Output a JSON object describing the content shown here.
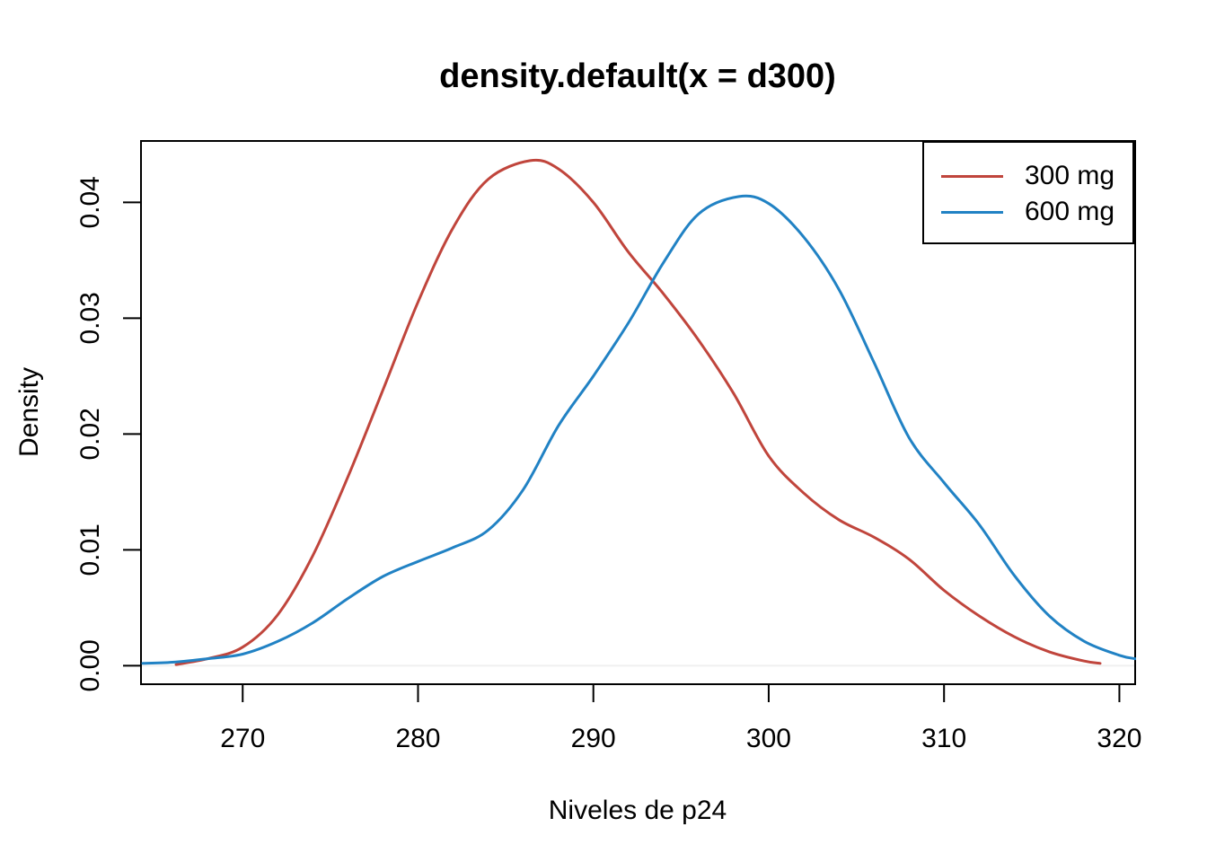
{
  "chart_data": {
    "type": "line",
    "title": "density.default(x = d300)",
    "xlabel": "Niveles de p24",
    "ylabel": "Density",
    "xlim": [
      264.2,
      320.9
    ],
    "ylim": [
      -0.0016,
      0.0453
    ],
    "x_ticks": [
      {
        "value": 270,
        "label": "270"
      },
      {
        "value": 280,
        "label": "280"
      },
      {
        "value": 290,
        "label": "290"
      },
      {
        "value": 300,
        "label": "300"
      },
      {
        "value": 310,
        "label": "310"
      },
      {
        "value": 320,
        "label": "320"
      }
    ],
    "y_ticks": [
      {
        "value": 0.0,
        "label": "0.00"
      },
      {
        "value": 0.01,
        "label": "0.01"
      },
      {
        "value": 0.02,
        "label": "0.02"
      },
      {
        "value": 0.03,
        "label": "0.03"
      },
      {
        "value": 0.04,
        "label": "0.04"
      }
    ],
    "grid": false,
    "zero_line": {
      "value": 0,
      "color": "#f0f0f0"
    },
    "axis_color": "#000000",
    "legend_position": "topright",
    "series": [
      {
        "name": "300 mg",
        "color": "#c0453c",
        "points": [
          [
            266.2,
            0.0001
          ],
          [
            268,
            0.0006
          ],
          [
            270,
            0.0016
          ],
          [
            272,
            0.0044
          ],
          [
            274,
            0.0095
          ],
          [
            276,
            0.0163
          ],
          [
            278,
            0.0238
          ],
          [
            280,
            0.0314
          ],
          [
            282,
            0.0378
          ],
          [
            284,
            0.042
          ],
          [
            286.4,
            0.0436
          ],
          [
            288,
            0.0429
          ],
          [
            290,
            0.04
          ],
          [
            292,
            0.0357
          ],
          [
            294,
            0.0321
          ],
          [
            296,
            0.0281
          ],
          [
            298,
            0.0235
          ],
          [
            300,
            0.0181
          ],
          [
            302,
            0.0149
          ],
          [
            304,
            0.0126
          ],
          [
            306,
            0.0111
          ],
          [
            308,
            0.0092
          ],
          [
            310,
            0.0065
          ],
          [
            312,
            0.0043
          ],
          [
            314,
            0.0025
          ],
          [
            316,
            0.0012
          ],
          [
            318,
            0.0004
          ],
          [
            318.9,
            0.0002
          ]
        ]
      },
      {
        "name": "600 mg",
        "color": "#2182c4",
        "points": [
          [
            264.3,
            0.0002
          ],
          [
            266,
            0.0003
          ],
          [
            268,
            0.0006
          ],
          [
            270,
            0.001
          ],
          [
            272,
            0.0021
          ],
          [
            274,
            0.0037
          ],
          [
            276,
            0.0058
          ],
          [
            278,
            0.0077
          ],
          [
            280,
            0.009
          ],
          [
            282,
            0.0102
          ],
          [
            284,
            0.0117
          ],
          [
            286,
            0.0152
          ],
          [
            288,
            0.0207
          ],
          [
            290,
            0.025
          ],
          [
            292,
            0.0296
          ],
          [
            294,
            0.0348
          ],
          [
            296,
            0.039
          ],
          [
            298.3,
            0.0405
          ],
          [
            300,
            0.0399
          ],
          [
            302,
            0.037
          ],
          [
            304,
            0.0325
          ],
          [
            306,
            0.0262
          ],
          [
            308,
            0.0197
          ],
          [
            310,
            0.0158
          ],
          [
            312,
            0.0122
          ],
          [
            314,
            0.0078
          ],
          [
            316,
            0.0043
          ],
          [
            318,
            0.0021
          ],
          [
            320,
            0.0009
          ],
          [
            320.9,
            0.0006
          ]
        ]
      }
    ]
  }
}
